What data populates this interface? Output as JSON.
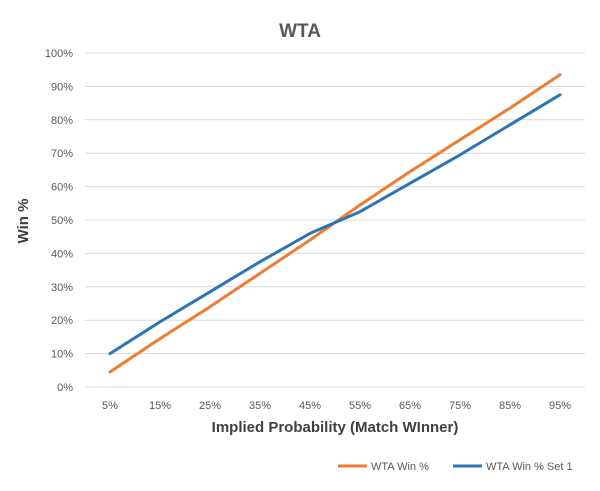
{
  "chart_data": {
    "type": "line",
    "title": "WTA",
    "xlabel": "Implied Probability (Match WInner)",
    "ylabel": "Win %",
    "x_tick_labels": [
      "5%",
      "15%",
      "25%",
      "35%",
      "45%",
      "55%",
      "65%",
      "75%",
      "85%",
      "95%"
    ],
    "y_tick_labels": [
      "0%",
      "10%",
      "20%",
      "30%",
      "40%",
      "50%",
      "60%",
      "70%",
      "80%",
      "90%",
      "100%"
    ],
    "xlim": [
      5,
      95
    ],
    "ylim": [
      0,
      100
    ],
    "grid": true,
    "legend_position": "bottom-right",
    "x": [
      5,
      15,
      25,
      35,
      45,
      55,
      65,
      75,
      85,
      95
    ],
    "series": [
      {
        "name": "WTA Win %",
        "color": "#ed7d31",
        "values": [
          4.5,
          14.5,
          24,
          34,
          44,
          54.5,
          64.5,
          74,
          83.5,
          93.5
        ]
      },
      {
        "name": "WTA Win % Set 1",
        "color": "#2e75b6",
        "values": [
          10,
          19.5,
          28.5,
          37.5,
          46,
          52.5,
          61,
          69.5,
          78.5,
          87.5
        ]
      }
    ]
  }
}
